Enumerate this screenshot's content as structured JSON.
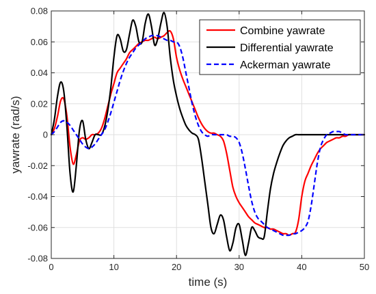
{
  "chart_data": {
    "type": "line",
    "xlabel": "time (s)",
    "ylabel": "yawrate (rad/s)",
    "xlim": [
      0,
      50
    ],
    "ylim": [
      -0.08,
      0.08
    ],
    "xticks": [
      "0",
      "10",
      "20",
      "30",
      "40",
      "50"
    ],
    "yticks": [
      "-0.08",
      "-0.06",
      "-0.04",
      "-0.02",
      "0",
      "0.02",
      "0.04",
      "0.06",
      "0.08"
    ],
    "grid": true,
    "legend_position": "top-right",
    "series": [
      {
        "name": "Combine yawrate",
        "color": "#ff0000",
        "style": "solid",
        "x": [
          0,
          0.5,
          1,
          1.5,
          2,
          2.5,
          3,
          3.5,
          4,
          4.5,
          5,
          5.5,
          6,
          6.5,
          7,
          7.5,
          8,
          8.5,
          9,
          9.5,
          10,
          10.5,
          11,
          11.5,
          12,
          12.5,
          13,
          13.5,
          14,
          14.5,
          15,
          15.5,
          16,
          16.5,
          17,
          17.5,
          18,
          18.5,
          19,
          19.5,
          20,
          20.5,
          21,
          21.5,
          22,
          22.5,
          23,
          23.5,
          24,
          24.5,
          25,
          25.5,
          26,
          26.5,
          27,
          27.5,
          28,
          28.5,
          29,
          29.5,
          30,
          30.5,
          31,
          31.5,
          32,
          32.5,
          33,
          33.5,
          34,
          34.5,
          35,
          35.5,
          36,
          36.5,
          37,
          37.5,
          38,
          38.5,
          39,
          39.5,
          40,
          40.5,
          41,
          41.5,
          42,
          42.5,
          43,
          43.5,
          44,
          44.5,
          45,
          45.5,
          46,
          46.5,
          47,
          47.5,
          48,
          48.5,
          49,
          49.5,
          50
        ],
        "values": [
          0,
          0.004,
          0.012,
          0.022,
          0.023,
          0.012,
          -0.008,
          -0.019,
          -0.013,
          -0.004,
          -0.002,
          -0.003,
          -0.002,
          0,
          0,
          0.001,
          0.004,
          0.01,
          0.018,
          0.026,
          0.033,
          0.04,
          0.043,
          0.046,
          0.049,
          0.053,
          0.055,
          0.057,
          0.059,
          0.06,
          0.061,
          0.061,
          0.062,
          0.063,
          0.062,
          0.063,
          0.064,
          0.066,
          0.067,
          0.062,
          0.05,
          0.042,
          0.036,
          0.031,
          0.026,
          0.021,
          0.016,
          0.011,
          0.007,
          0.004,
          0.002,
          0.001,
          0.001,
          0,
          -0.001,
          -0.004,
          -0.012,
          -0.023,
          -0.034,
          -0.04,
          -0.044,
          -0.047,
          -0.05,
          -0.053,
          -0.055,
          -0.057,
          -0.058,
          -0.059,
          -0.06,
          -0.06,
          -0.061,
          -0.061,
          -0.062,
          -0.063,
          -0.064,
          -0.064,
          -0.065,
          -0.064,
          -0.063,
          -0.055,
          -0.04,
          -0.03,
          -0.025,
          -0.02,
          -0.016,
          -0.012,
          -0.009,
          -0.007,
          -0.005,
          -0.004,
          -0.003,
          -0.002,
          -0.002,
          -0.001,
          -0.001,
          0,
          0,
          0,
          0,
          0,
          0
        ]
      },
      {
        "name": "Differential yawrate",
        "color": "#000000",
        "style": "solid",
        "x": [
          0,
          0.5,
          1,
          1.5,
          2,
          2.5,
          3,
          3.5,
          4,
          4.5,
          5,
          5.5,
          6,
          6.5,
          7,
          7.5,
          8,
          8.5,
          9,
          9.5,
          10,
          10.5,
          11,
          11.5,
          12,
          12.5,
          13,
          13.5,
          14,
          14.5,
          15,
          15.5,
          16,
          16.5,
          17,
          17.5,
          18,
          18.5,
          19,
          19.5,
          20,
          20.5,
          21,
          21.5,
          22,
          22.5,
          23,
          23.5,
          24,
          24.5,
          25,
          25.5,
          26,
          26.5,
          27,
          27.5,
          28,
          28.5,
          29,
          29.5,
          30,
          30.5,
          31,
          31.5,
          32,
          32.5,
          33,
          33.5,
          34,
          34.5,
          35,
          35.5,
          36,
          36.5,
          37,
          37.5,
          38,
          38.5,
          39,
          39.5,
          40,
          40.5,
          41,
          41.5,
          42,
          42.5,
          43,
          43.5,
          44,
          44.5,
          45,
          45.5,
          46,
          46.5,
          47,
          47.5,
          48,
          48.5,
          49,
          49.5,
          50
        ],
        "values": [
          0,
          0.01,
          0.025,
          0.034,
          0.028,
          0.005,
          -0.025,
          -0.037,
          -0.02,
          0.003,
          0.009,
          -0.003,
          -0.009,
          -0.005,
          0,
          0,
          0,
          0.005,
          0.015,
          0.03,
          0.05,
          0.064,
          0.062,
          0.054,
          0.055,
          0.065,
          0.074,
          0.07,
          0.06,
          0.06,
          0.072,
          0.078,
          0.07,
          0.058,
          0.062,
          0.072,
          0.079,
          0.07,
          0.05,
          0.035,
          0.025,
          0.017,
          0.011,
          0.006,
          0.003,
          0.001,
          0,
          -0.003,
          -0.015,
          -0.03,
          -0.045,
          -0.06,
          -0.064,
          -0.058,
          -0.052,
          -0.055,
          -0.066,
          -0.075,
          -0.07,
          -0.06,
          -0.058,
          -0.068,
          -0.078,
          -0.07,
          -0.06,
          -0.062,
          -0.066,
          -0.067,
          -0.066,
          -0.05,
          -0.035,
          -0.025,
          -0.018,
          -0.012,
          -0.007,
          -0.004,
          -0.002,
          -0.001,
          0,
          0,
          0,
          0,
          0,
          0,
          0,
          0,
          0,
          0,
          0,
          0,
          0,
          0,
          0,
          0,
          0,
          0,
          0,
          0,
          0,
          0,
          0
        ]
      },
      {
        "name": "Ackerman yawrate",
        "color": "#0000ff",
        "style": "dashed",
        "x": [
          0,
          0.5,
          1,
          1.5,
          2,
          2.5,
          3,
          3.5,
          4,
          4.5,
          5,
          5.5,
          6,
          6.5,
          7,
          7.5,
          8,
          8.5,
          9,
          9.5,
          10,
          10.5,
          11,
          11.5,
          12,
          12.5,
          13,
          13.5,
          14,
          14.5,
          15,
          15.5,
          16,
          16.5,
          17,
          17.5,
          18,
          18.5,
          19,
          19.5,
          20,
          20.5,
          21,
          21.5,
          22,
          22.5,
          23,
          23.5,
          24,
          24.5,
          25,
          25.5,
          26,
          26.5,
          27,
          27.5,
          28,
          28.5,
          29,
          29.5,
          30,
          30.5,
          31,
          31.5,
          32,
          32.5,
          33,
          33.5,
          34,
          34.5,
          35,
          35.5,
          36,
          36.5,
          37,
          37.5,
          38,
          38.5,
          39,
          39.5,
          40,
          40.5,
          41,
          41.5,
          42,
          42.5,
          43,
          43.5,
          44,
          44.5,
          45,
          45.5,
          46,
          46.5,
          47,
          47.5,
          48,
          48.5,
          49,
          49.5,
          50
        ],
        "values": [
          0,
          0.002,
          0.005,
          0.008,
          0.009,
          0.008,
          0.006,
          0.003,
          0,
          -0.003,
          -0.006,
          -0.008,
          -0.009,
          -0.008,
          -0.006,
          -0.003,
          0,
          0.003,
          0.008,
          0.014,
          0.021,
          0.028,
          0.035,
          0.041,
          0.046,
          0.05,
          0.053,
          0.056,
          0.058,
          0.06,
          0.062,
          0.063,
          0.064,
          0.064,
          0.064,
          0.063,
          0.062,
          0.061,
          0.061,
          0.06,
          0.06,
          0.057,
          0.05,
          0.04,
          0.03,
          0.02,
          0.012,
          0.006,
          0.002,
          0,
          -0.001,
          0,
          0,
          0,
          0,
          0,
          0,
          -0.001,
          -0.001,
          -0.002,
          -0.005,
          -0.012,
          -0.022,
          -0.033,
          -0.043,
          -0.05,
          -0.054,
          -0.056,
          -0.058,
          -0.06,
          -0.061,
          -0.062,
          -0.063,
          -0.064,
          -0.065,
          -0.065,
          -0.065,
          -0.064,
          -0.064,
          -0.063,
          -0.062,
          -0.06,
          -0.056,
          -0.046,
          -0.032,
          -0.018,
          -0.008,
          -0.003,
          0,
          0.001,
          0.002,
          0.002,
          0.002,
          0.001,
          0,
          0,
          0,
          0,
          0,
          0,
          0
        ]
      }
    ]
  }
}
